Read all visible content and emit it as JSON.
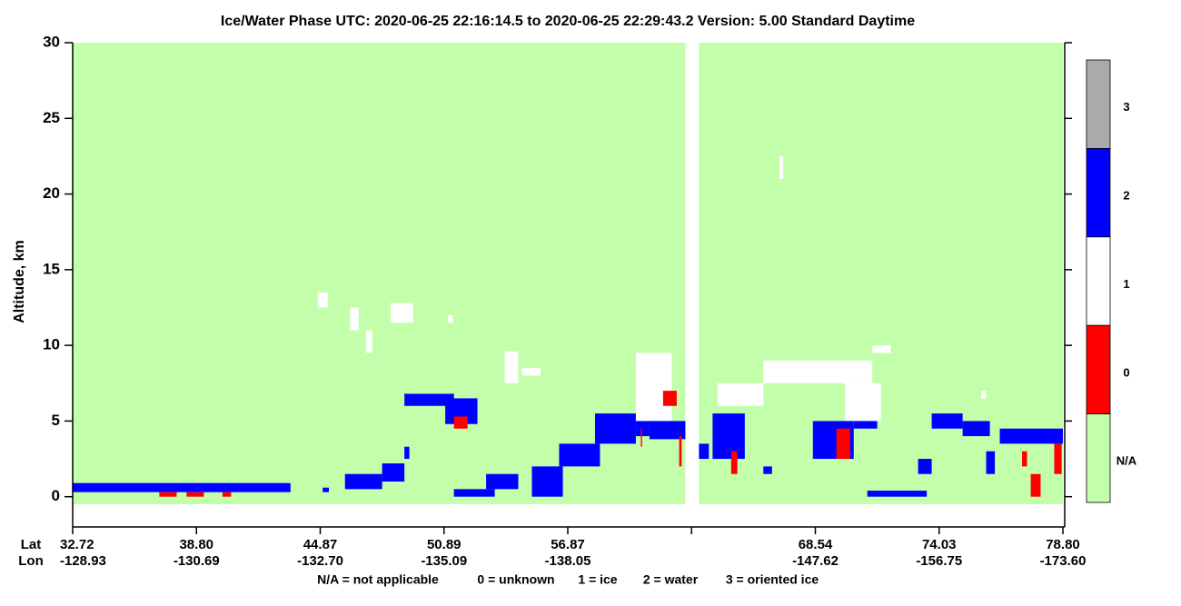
{
  "chart_data": {
    "type": "phase-curtain",
    "title": "Ice/Water Phase    UTC:  2020-06-25   22:16:14.5  to  2020-06-25   22:29:43.2    Version: 5.00  Standard Daytime",
    "y_label": "Altitude, km",
    "ylim": [
      -2,
      30
    ],
    "yticks": [
      0,
      5,
      10,
      15,
      20,
      25,
      30
    ],
    "xlim": [
      0,
      8
    ],
    "xticks": [
      0,
      1,
      2,
      3,
      4,
      5,
      6,
      7,
      8
    ],
    "lat_title": "Lat",
    "lon_title": "Lon",
    "lat_labels": [
      "32.72",
      "38.80",
      "44.87",
      "50.89",
      "56.87",
      null,
      "68.54",
      "74.03",
      "78.80"
    ],
    "lon_labels": [
      "-128.93",
      "-130.69",
      "-132.70",
      "-135.09",
      "-138.05",
      null,
      "-147.62",
      "-156.75",
      "-173.60"
    ],
    "classes": [
      {
        "label": "3",
        "color": "#aaaaaa"
      },
      {
        "label": "2",
        "color": "#0000ff"
      },
      {
        "label": "1",
        "color": "#ffffff"
      },
      {
        "label": "0",
        "color": "#ff0000"
      },
      {
        "label": "N/A",
        "color": "#c3ffaa"
      }
    ],
    "legend": [
      "N/A = not applicable",
      "0 = unknown",
      "1 = ice",
      "2 = water",
      "3 = oriented ice"
    ],
    "features": [
      {
        "phase": "N/A",
        "x": [
          0,
          4.95
        ],
        "alt": [
          -0.5,
          30
        ]
      },
      {
        "phase": "N/A",
        "x": [
          5.06,
          8
        ],
        "alt": [
          -0.5,
          30
        ]
      },
      {
        "phase": "2",
        "x": [
          0,
          1.76
        ],
        "alt": [
          0.3,
          0.9
        ]
      },
      {
        "phase": "0",
        "x": [
          0.7,
          0.84
        ],
        "alt": [
          0,
          0.3
        ]
      },
      {
        "phase": "0",
        "x": [
          0.92,
          1.06
        ],
        "alt": [
          0,
          0.3
        ]
      },
      {
        "phase": "0",
        "x": [
          1.21,
          1.28
        ],
        "alt": [
          0,
          0.3
        ]
      },
      {
        "phase": "2",
        "x": [
          2.02,
          2.07
        ],
        "alt": [
          0.3,
          0.6
        ]
      },
      {
        "phase": "2",
        "x": [
          2.2,
          2.5
        ],
        "alt": [
          0.5,
          1.5
        ]
      },
      {
        "phase": "2",
        "x": [
          2.5,
          2.68
        ],
        "alt": [
          1,
          2.2
        ]
      },
      {
        "phase": "2",
        "x": [
          2.68,
          2.72
        ],
        "alt": [
          2.5,
          3.3
        ]
      },
      {
        "phase": "1",
        "x": [
          1.98,
          2.06
        ],
        "alt": [
          12.5,
          13.5
        ]
      },
      {
        "phase": "1",
        "x": [
          2.24,
          2.31
        ],
        "alt": [
          11,
          12.5
        ]
      },
      {
        "phase": "1",
        "x": [
          2.37,
          2.42
        ],
        "alt": [
          9.5,
          11
        ]
      },
      {
        "phase": "1",
        "x": [
          2.57,
          2.75
        ],
        "alt": [
          11.5,
          12.8
        ]
      },
      {
        "phase": "1",
        "x": [
          3.03,
          3.07
        ],
        "alt": [
          11.5,
          12
        ]
      },
      {
        "phase": "2",
        "x": [
          2.68,
          3.08
        ],
        "alt": [
          6,
          6.8
        ]
      },
      {
        "phase": "2",
        "x": [
          3.01,
          3.27
        ],
        "alt": [
          4.8,
          6.5
        ]
      },
      {
        "phase": "0",
        "x": [
          3.08,
          3.19
        ],
        "alt": [
          4.5,
          5.3
        ]
      },
      {
        "phase": "2",
        "x": [
          3.08,
          3.41
        ],
        "alt": [
          0,
          0.5
        ]
      },
      {
        "phase": "2",
        "x": [
          3.34,
          3.6
        ],
        "alt": [
          0.5,
          1.5
        ]
      },
      {
        "phase": "2",
        "x": [
          3.71,
          3.96
        ],
        "alt": [
          0,
          2
        ]
      },
      {
        "phase": "2",
        "x": [
          3.93,
          4.26
        ],
        "alt": [
          2,
          3.5
        ]
      },
      {
        "phase": "2",
        "x": [
          4.22,
          4.55
        ],
        "alt": [
          3.5,
          5.5
        ]
      },
      {
        "phase": "2",
        "x": [
          4.55,
          4.66
        ],
        "alt": [
          4,
          5.5
        ]
      },
      {
        "phase": "1",
        "x": [
          3.49,
          3.6
        ],
        "alt": [
          7.5,
          9.6
        ]
      },
      {
        "phase": "1",
        "x": [
          3.63,
          3.78
        ],
        "alt": [
          8,
          8.5
        ]
      },
      {
        "phase": "1",
        "x": [
          4.55,
          4.84
        ],
        "alt": [
          5,
          9.5
        ]
      },
      {
        "phase": "0",
        "x": [
          4.59,
          4.6
        ],
        "alt": [
          3.3,
          4.5
        ]
      },
      {
        "phase": "0",
        "x": [
          4.77,
          4.88
        ],
        "alt": [
          6,
          7
        ]
      },
      {
        "phase": "2",
        "x": [
          4.66,
          4.95
        ],
        "alt": [
          3.8,
          5
        ]
      },
      {
        "phase": "0",
        "x": [
          4.9,
          4.92
        ],
        "alt": [
          2,
          4
        ]
      },
      {
        "phase": "1",
        "x": [
          5.21,
          5.58
        ],
        "alt": [
          6,
          7.5
        ]
      },
      {
        "phase": "1",
        "x": [
          5.58,
          6.46
        ],
        "alt": [
          7.5,
          9
        ]
      },
      {
        "phase": "1",
        "x": [
          6.46,
          6.61
        ],
        "alt": [
          9.5,
          10
        ]
      },
      {
        "phase": "1",
        "x": [
          6.24,
          6.53
        ],
        "alt": [
          5,
          7.5
        ]
      },
      {
        "phase": "1",
        "x": [
          5.71,
          5.74
        ],
        "alt": [
          21,
          22.5
        ]
      },
      {
        "phase": "1",
        "x": [
          7.34,
          7.38
        ],
        "alt": [
          6.5,
          7
        ]
      },
      {
        "phase": "2",
        "x": [
          5.06,
          5.14
        ],
        "alt": [
          2.5,
          3.5
        ]
      },
      {
        "phase": "2",
        "x": [
          5.17,
          5.43
        ],
        "alt": [
          2.5,
          5.5
        ]
      },
      {
        "phase": "0",
        "x": [
          5.32,
          5.37
        ],
        "alt": [
          1.5,
          3
        ]
      },
      {
        "phase": "2",
        "x": [
          5.58,
          5.65
        ],
        "alt": [
          1.5,
          2
        ]
      },
      {
        "phase": "2",
        "x": [
          5.98,
          6.31
        ],
        "alt": [
          2.5,
          5
        ]
      },
      {
        "phase": "0",
        "x": [
          6.17,
          6.28
        ],
        "alt": [
          2.5,
          4.5
        ]
      },
      {
        "phase": "2",
        "x": [
          6.31,
          6.5
        ],
        "alt": [
          4.5,
          5
        ]
      },
      {
        "phase": "2",
        "x": [
          6.42,
          6.9
        ],
        "alt": [
          0,
          0.4
        ]
      },
      {
        "phase": "2",
        "x": [
          6.83,
          6.94
        ],
        "alt": [
          1.5,
          2.5
        ]
      },
      {
        "phase": "2",
        "x": [
          6.94,
          7.19
        ],
        "alt": [
          4.5,
          5.5
        ]
      },
      {
        "phase": "2",
        "x": [
          7.19,
          7.41
        ],
        "alt": [
          4,
          5
        ]
      },
      {
        "phase": "2",
        "x": [
          7.38,
          7.45
        ],
        "alt": [
          1.5,
          3
        ]
      },
      {
        "phase": "2",
        "x": [
          7.49,
          8
        ],
        "alt": [
          3.5,
          4.5
        ]
      },
      {
        "phase": "0",
        "x": [
          7.67,
          7.71
        ],
        "alt": [
          2,
          3
        ]
      },
      {
        "phase": "0",
        "x": [
          7.74,
          7.82
        ],
        "alt": [
          0,
          1.5
        ]
      },
      {
        "phase": "0",
        "x": [
          7.93,
          7.99
        ],
        "alt": [
          1.5,
          3.5
        ]
      }
    ]
  }
}
